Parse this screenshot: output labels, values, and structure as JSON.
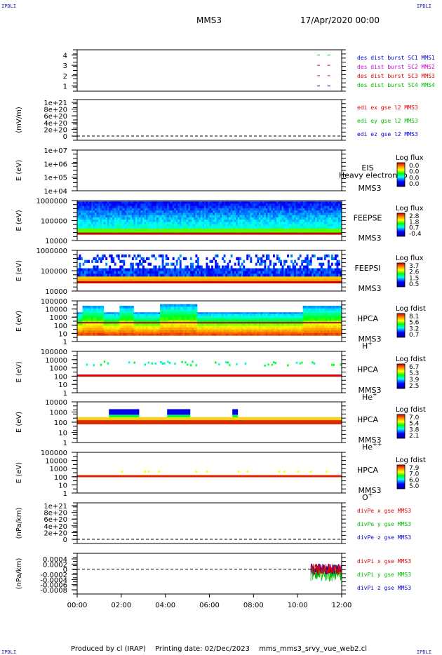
{
  "header": {
    "left_tag": "IPDLI",
    "right_tag": "IPDLI",
    "spacecraft": "MMS3",
    "date": "17/Apr/2020 00:00"
  },
  "footer": {
    "left_tag": "IPDLI",
    "right_tag": "IPDLI",
    "produced_by": "Produced by cl (IRAP)",
    "printing_date": "Printing date: 02/Dec/2023",
    "script_name": "mms_mms3_srvy_vue_web2.cl"
  },
  "colors": {
    "red": "#dd0000",
    "green": "#00bb00",
    "blue": "#0000cc",
    "magenta": "#cc00cc",
    "text_blue": "#1a1aa6"
  },
  "chart_data": [
    {
      "type": "line",
      "ylim": [
        0.5,
        4.5
      ],
      "yticks": [
        "1",
        "2",
        "3",
        "4"
      ],
      "legend": [
        {
          "text": "des dist burst SC1 MMS1",
          "color": "#0000cc"
        },
        {
          "text": "des dist burst SC2 MMS2",
          "color": "#cc00cc"
        },
        {
          "text": "des dist burst SC3 MMS3",
          "color": "#dd0000"
        },
        {
          "text": "des dist burst SC4 MMS4",
          "color": "#00bb00"
        }
      ],
      "series": [
        {
          "level": 4,
          "color": "#00bb00",
          "x": [
            10.95,
            11.42
          ]
        },
        {
          "level": 3,
          "color": "#dd0000",
          "x": [
            10.95,
            11.42
          ]
        },
        {
          "level": 2,
          "color": "#cc00cc",
          "x": [
            10.95,
            11.42
          ]
        },
        {
          "level": 1,
          "color": "#0000cc",
          "x": [
            10.95,
            11.42
          ]
        }
      ]
    },
    {
      "type": "line",
      "ylabel": "(mV/m)",
      "yticks": [
        "1e+21",
        "8e+20",
        "6e+20",
        "4e+20",
        "2e+20",
        "0"
      ],
      "legend": [
        {
          "text": "edi ex gse l2 MMS3",
          "color": "#dd0000"
        },
        {
          "text": "edi ey gse l2 MMS3",
          "color": "#00bb00"
        },
        {
          "text": "edi ez gse l2 MMS3",
          "color": "#0000cc"
        }
      ]
    },
    {
      "type": "heatmap",
      "ylabel": "E (eV)",
      "yticks": [
        "1e+07",
        "1e+06",
        "1e+05",
        "1e+04"
      ],
      "instrument": "EIS",
      "spacecraft": "MMS3",
      "overlay_text": "Heavy electron to",
      "colorbar": {
        "title": "Log flux",
        "ticks": [
          "0.0",
          "0.0",
          "0.0",
          "0.0"
        ]
      }
    },
    {
      "type": "heatmap",
      "ylabel": "E (eV)",
      "yticks": [
        "1000000",
        "100000",
        "10000"
      ],
      "instrument": "FEEPSE",
      "spacecraft": "MMS3",
      "colorbar": {
        "title": "Log flux",
        "ticks": [
          "2.8",
          "1.8",
          "0.7",
          "-0.4"
        ]
      }
    },
    {
      "type": "heatmap",
      "ylabel": "E (eV)",
      "yticks": [
        "1000000",
        "100000",
        "10000"
      ],
      "instrument": "FEEPSI",
      "spacecraft": "MMS3",
      "colorbar": {
        "title": "Log flux",
        "ticks": [
          "3.7",
          "2.6",
          "1.5",
          "0.5"
        ]
      }
    },
    {
      "type": "heatmap",
      "ylabel": "E (eV)",
      "yticks": [
        "100000",
        "10000",
        "1000",
        "100",
        "10",
        "1"
      ],
      "instrument": "HPCA",
      "spacecraft": "MMS3",
      "species": "H",
      "species_sup": "+",
      "colorbar": {
        "title": "Log fdist",
        "ticks": [
          "8.1",
          "5.6",
          "3.2",
          "0.7"
        ]
      }
    },
    {
      "type": "heatmap",
      "ylabel": "E (eV)",
      "yticks": [
        "100000",
        "10000",
        "1000",
        "100",
        "10",
        "1"
      ],
      "instrument": "HPCA",
      "spacecraft": "MMS3",
      "species": "He",
      "species_sup": "+",
      "colorbar": {
        "title": "Log fdist",
        "ticks": [
          "6.7",
          "5.3",
          "3.9",
          "2.5"
        ]
      }
    },
    {
      "type": "heatmap",
      "ylabel": "E (eV)",
      "yticks": [
        "10000",
        "1000",
        "100",
        "10",
        "1"
      ],
      "instrument": "HPCA",
      "spacecraft": "MMS3",
      "species": "He",
      "species_sup": "++",
      "colorbar": {
        "title": "Log fdist",
        "ticks": [
          "7.0",
          "5.4",
          "3.8",
          "2.1"
        ]
      }
    },
    {
      "type": "heatmap",
      "ylabel": "E (eV)",
      "yticks": [
        "100000",
        "10000",
        "1000",
        "100",
        "10",
        "1"
      ],
      "instrument": "HPCA",
      "spacecraft": "MMS3",
      "species": "O",
      "species_sup": "+",
      "colorbar": {
        "title": "Log fdist",
        "ticks": [
          "7.9",
          "7.0",
          "6.0",
          "5.0"
        ]
      }
    },
    {
      "type": "line",
      "ylabel": "(nPa/km)",
      "yticks": [
        "1e+21",
        "8e+20",
        "6e+20",
        "4e+20",
        "2e+20",
        "0"
      ],
      "legend": [
        {
          "text": "divPe x gse MMS3",
          "color": "#dd0000"
        },
        {
          "text": "divPe y gse MMS3",
          "color": "#00bb00"
        },
        {
          "text": "divPe z gse MMS3",
          "color": "#0000cc"
        }
      ]
    },
    {
      "type": "line",
      "ylabel": "(nPa/km)",
      "yticks": [
        "0.0004",
        "0.0002",
        "0",
        "-0.0002",
        "-0.0004",
        "-0.0006",
        "-0.0008"
      ],
      "ylim": [
        -0.0009,
        0.0005
      ],
      "legend": [
        {
          "text": "divPi x gse MMS3",
          "color": "#dd0000"
        },
        {
          "text": "divPi y gse MMS3",
          "color": "#00bb00"
        },
        {
          "text": "divPi z gse MMS3",
          "color": "#0000cc"
        }
      ],
      "data_window_hours": [
        10.6,
        12.0
      ]
    }
  ],
  "xaxis": {
    "ticks": [
      "00:00",
      "02:00",
      "04:00",
      "06:00",
      "08:00",
      "10:00",
      "12:00"
    ],
    "range_hours": [
      0,
      12
    ]
  }
}
